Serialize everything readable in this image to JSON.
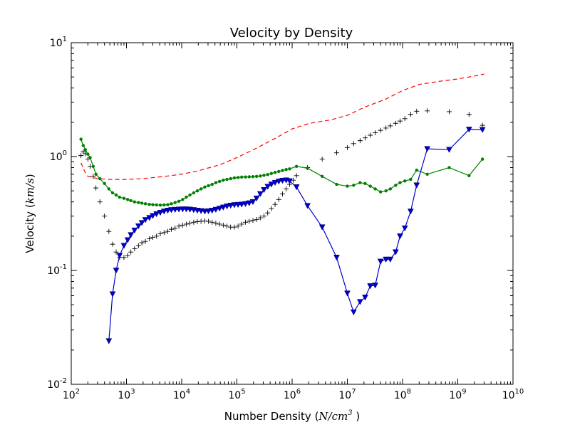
{
  "chart_data": {
    "type": "line",
    "title": "Velocity by Density",
    "xlabel": {
      "text": "Number Density (",
      "math": "N/cm",
      "math_sup": "3",
      "suffix": " )"
    },
    "ylabel": {
      "text": "Velocity (",
      "math": "km/s",
      "suffix": ")"
    },
    "xscale": "log",
    "yscale": "log",
    "xlim": [
      100,
      10000000000
    ],
    "ylim": [
      0.01,
      10
    ],
    "x_ticks": [
      {
        "base": "10",
        "exp": "2",
        "value": 100
      },
      {
        "base": "10",
        "exp": "3",
        "value": 1000
      },
      {
        "base": "10",
        "exp": "4",
        "value": 10000
      },
      {
        "base": "10",
        "exp": "5",
        "value": 100000
      },
      {
        "base": "10",
        "exp": "6",
        "value": 1000000
      },
      {
        "base": "10",
        "exp": "7",
        "value": 10000000
      },
      {
        "base": "10",
        "exp": "8",
        "value": 100000000
      },
      {
        "base": "10",
        "exp": "9",
        "value": 1000000000
      },
      {
        "base": "10",
        "exp": "10",
        "value": 10000000000
      }
    ],
    "y_ticks": [
      {
        "base": "10",
        "exp": "-2",
        "value": 0.01
      },
      {
        "base": "10",
        "exp": "-1",
        "value": 0.1
      },
      {
        "base": "10",
        "exp": "0",
        "value": 1
      },
      {
        "base": "10",
        "exp": "1",
        "value": 10
      }
    ],
    "grid": false,
    "series": [
      {
        "style": "dashed-line",
        "color": "#ff0000",
        "x": [
          150,
          180,
          200,
          300,
          500,
          1000,
          2000,
          5000,
          10000,
          20000,
          50000,
          100000,
          200000,
          500000,
          1000000,
          2000000,
          5000000,
          10000000,
          20000000,
          50000000,
          100000000,
          200000000,
          500000000,
          1000000000,
          2000000000,
          3000000000
        ],
        "y": [
          0.88,
          0.72,
          0.67,
          0.64,
          0.63,
          0.63,
          0.64,
          0.67,
          0.7,
          0.75,
          0.85,
          0.98,
          1.15,
          1.45,
          1.75,
          1.95,
          2.1,
          2.3,
          2.7,
          3.2,
          3.8,
          4.3,
          4.6,
          4.8,
          5.1,
          5.3
        ]
      },
      {
        "style": "plus-markers",
        "color": "#000000",
        "x": [
          150,
          165,
          180,
          200,
          220,
          250,
          280,
          330,
          400,
          480,
          560,
          650,
          750,
          900,
          1050,
          1200,
          1400,
          1650,
          1900,
          2200,
          2600,
          3000,
          3500,
          4100,
          4800,
          5600,
          6500,
          7600,
          8900,
          10400,
          12100,
          14100,
          16500,
          19200,
          22400,
          26200,
          30500,
          35600,
          41500,
          48500,
          56600,
          66000,
          77000,
          90000,
          105000,
          122000,
          143000,
          167000,
          195000,
          227000,
          265000,
          309000,
          361000,
          421000,
          491000,
          573000,
          669000,
          780000,
          900000,
          1050000,
          1200000,
          1900000,
          3500000,
          6400000,
          10000000,
          13000000,
          17000000,
          21000000,
          26000000,
          32000000,
          40000000,
          50000000,
          60000000,
          75000000,
          90000000,
          110000000,
          140000000,
          180000000,
          280000000,
          700000000,
          1600000000,
          2800000000
        ],
        "y": [
          1.02,
          1.1,
          1.06,
          0.95,
          0.82,
          0.67,
          0.53,
          0.4,
          0.3,
          0.22,
          0.17,
          0.145,
          0.13,
          0.13,
          0.135,
          0.145,
          0.155,
          0.165,
          0.175,
          0.18,
          0.19,
          0.195,
          0.2,
          0.21,
          0.215,
          0.22,
          0.23,
          0.235,
          0.245,
          0.25,
          0.255,
          0.26,
          0.265,
          0.268,
          0.27,
          0.272,
          0.27,
          0.265,
          0.26,
          0.255,
          0.25,
          0.245,
          0.24,
          0.24,
          0.245,
          0.255,
          0.265,
          0.27,
          0.275,
          0.28,
          0.29,
          0.3,
          0.32,
          0.35,
          0.38,
          0.42,
          0.47,
          0.52,
          0.57,
          0.62,
          0.68,
          0.8,
          0.95,
          1.08,
          1.2,
          1.3,
          1.38,
          1.46,
          1.54,
          1.62,
          1.7,
          1.78,
          1.86,
          1.96,
          2.05,
          2.15,
          2.35,
          2.5,
          2.52,
          2.48,
          2.35,
          1.88
        ]
      },
      {
        "style": "dot-line",
        "color": "#008000",
        "x": [
          150,
          165,
          180,
          200,
          220,
          250,
          280,
          330,
          400,
          480,
          560,
          650,
          750,
          900,
          1050,
          1200,
          1400,
          1650,
          1900,
          2200,
          2600,
          3000,
          3500,
          4100,
          4800,
          5600,
          6500,
          7600,
          8900,
          10400,
          12100,
          14100,
          16500,
          19200,
          22400,
          26200,
          30500,
          35600,
          41500,
          48500,
          56600,
          66000,
          77000,
          90000,
          105000,
          122000,
          143000,
          167000,
          195000,
          227000,
          265000,
          309000,
          361000,
          421000,
          491000,
          573000,
          669000,
          780000,
          900000,
          1200000,
          1900000,
          3500000,
          6400000,
          10000000,
          13000000,
          17000000,
          21000000,
          26000000,
          32000000,
          40000000,
          50000000,
          60000000,
          75000000,
          90000000,
          110000000,
          140000000,
          180000000,
          280000000,
          700000000,
          1600000000,
          2800000000
        ],
        "y": [
          1.42,
          1.25,
          1.15,
          1.05,
          0.98,
          0.82,
          0.7,
          0.64,
          0.58,
          0.52,
          0.48,
          0.46,
          0.44,
          0.43,
          0.42,
          0.41,
          0.4,
          0.395,
          0.39,
          0.385,
          0.38,
          0.378,
          0.376,
          0.375,
          0.376,
          0.378,
          0.385,
          0.395,
          0.405,
          0.42,
          0.44,
          0.46,
          0.48,
          0.5,
          0.52,
          0.54,
          0.555,
          0.57,
          0.59,
          0.605,
          0.62,
          0.63,
          0.64,
          0.65,
          0.655,
          0.66,
          0.662,
          0.664,
          0.666,
          0.67,
          0.675,
          0.685,
          0.695,
          0.71,
          0.725,
          0.74,
          0.755,
          0.77,
          0.78,
          0.82,
          0.79,
          0.67,
          0.57,
          0.55,
          0.56,
          0.59,
          0.58,
          0.55,
          0.52,
          0.49,
          0.5,
          0.52,
          0.56,
          0.59,
          0.61,
          0.63,
          0.76,
          0.7,
          0.8,
          0.68,
          0.95
        ]
      },
      {
        "style": "triangle-line",
        "color": "#0000cc",
        "x": [
          480,
          560,
          650,
          750,
          900,
          1050,
          1200,
          1400,
          1650,
          1900,
          2200,
          2600,
          3000,
          3500,
          4100,
          4800,
          5600,
          6500,
          7600,
          8900,
          10400,
          12100,
          14100,
          16500,
          19200,
          22400,
          26200,
          30500,
          35600,
          41500,
          48500,
          56600,
          66000,
          77000,
          90000,
          105000,
          122000,
          143000,
          167000,
          195000,
          227000,
          265000,
          309000,
          361000,
          421000,
          491000,
          573000,
          669000,
          780000,
          900000,
          1200000,
          1900000,
          3500000,
          6400000,
          10000000,
          13000000,
          17000000,
          21000000,
          26000000,
          32000000,
          40000000,
          50000000,
          60000000,
          75000000,
          90000000,
          110000000,
          140000000,
          180000000,
          280000000,
          700000000,
          1600000000,
          2800000000
        ],
        "y": [
          0.024,
          0.062,
          0.1,
          0.135,
          0.165,
          0.185,
          0.205,
          0.225,
          0.245,
          0.262,
          0.278,
          0.29,
          0.302,
          0.313,
          0.322,
          0.33,
          0.336,
          0.34,
          0.342,
          0.344,
          0.345,
          0.345,
          0.343,
          0.34,
          0.336,
          0.333,
          0.33,
          0.332,
          0.336,
          0.342,
          0.35,
          0.358,
          0.366,
          0.372,
          0.376,
          0.378,
          0.38,
          0.384,
          0.39,
          0.4,
          0.43,
          0.47,
          0.51,
          0.545,
          0.57,
          0.59,
          0.605,
          0.615,
          0.62,
          0.61,
          0.54,
          0.37,
          0.24,
          0.13,
          0.063,
          0.043,
          0.053,
          0.058,
          0.073,
          0.074,
          0.12,
          0.125,
          0.125,
          0.145,
          0.2,
          0.235,
          0.33,
          0.56,
          1.17,
          1.15,
          1.73,
          1.72
        ]
      }
    ]
  }
}
